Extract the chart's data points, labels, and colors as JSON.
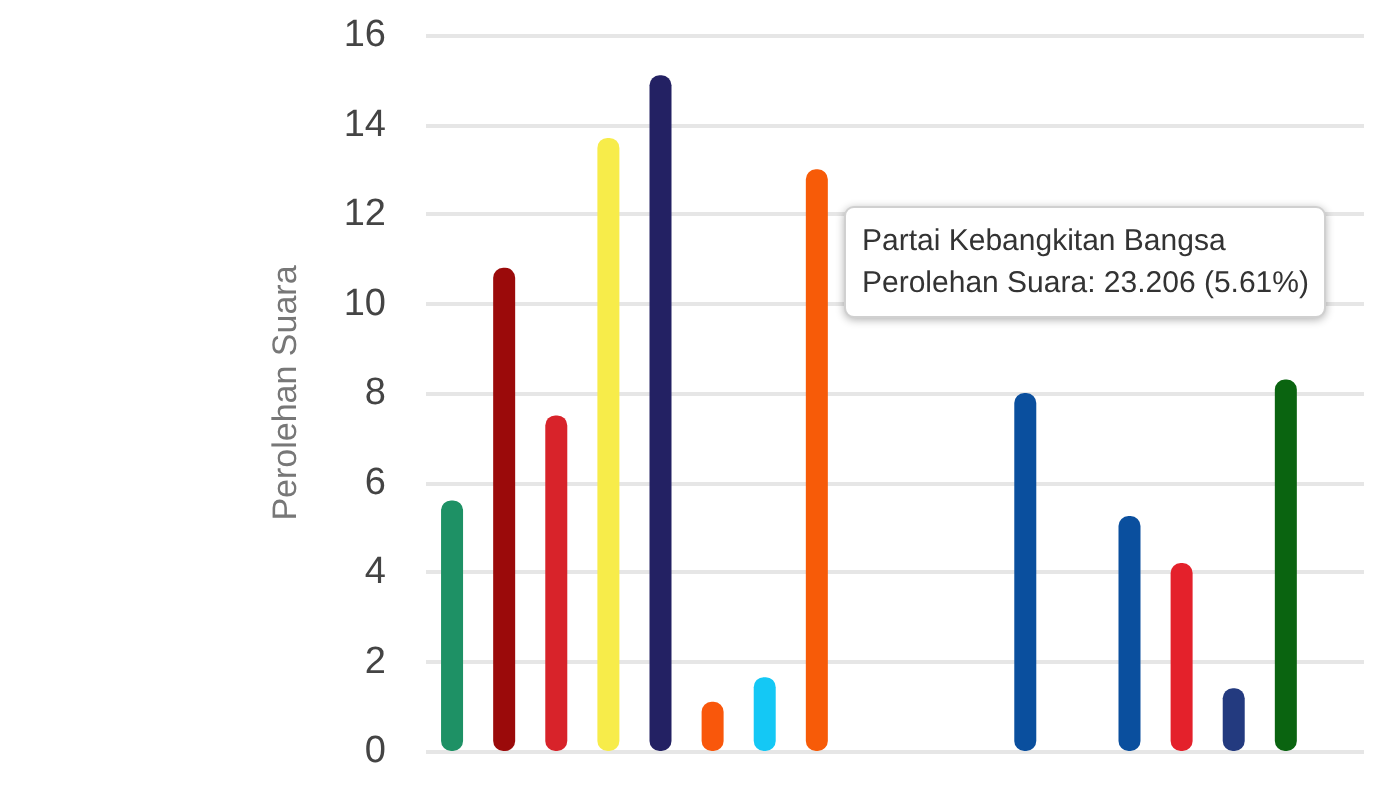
{
  "chart_data": {
    "type": "bar",
    "ylabel": "Perolehan Suara",
    "categories": [
      null,
      null,
      null,
      null,
      null,
      null,
      null,
      null,
      null,
      null,
      null,
      null,
      null,
      null,
      null,
      null,
      null,
      null
    ],
    "values": [
      5.6,
      10.8,
      7.5,
      13.7,
      15.1,
      1.1,
      1.65,
      13.0,
      null,
      null,
      null,
      8.0,
      null,
      5.25,
      4.2,
      1.4,
      8.3,
      null
    ],
    "colors": [
      "#1e9165",
      "#9b0a0a",
      "#d8232a",
      "#f7ec4a",
      "#232163",
      "#f9570b",
      "#14c8f5",
      "#f75b08",
      null,
      null,
      null,
      "#0a4f9e",
      null,
      "#0a4f9e",
      "#e4212b",
      "#233a7f",
      "#0a6410",
      null
    ],
    "ylim": [
      0,
      16
    ],
    "yticks": [
      0,
      2,
      4,
      6,
      8,
      10,
      12,
      14,
      16
    ],
    "grid": "y",
    "annotations": [
      "Partai Kebangkitan Bangsa",
      "Perolehan Suara: 23.206 (5.61%)"
    ]
  }
}
